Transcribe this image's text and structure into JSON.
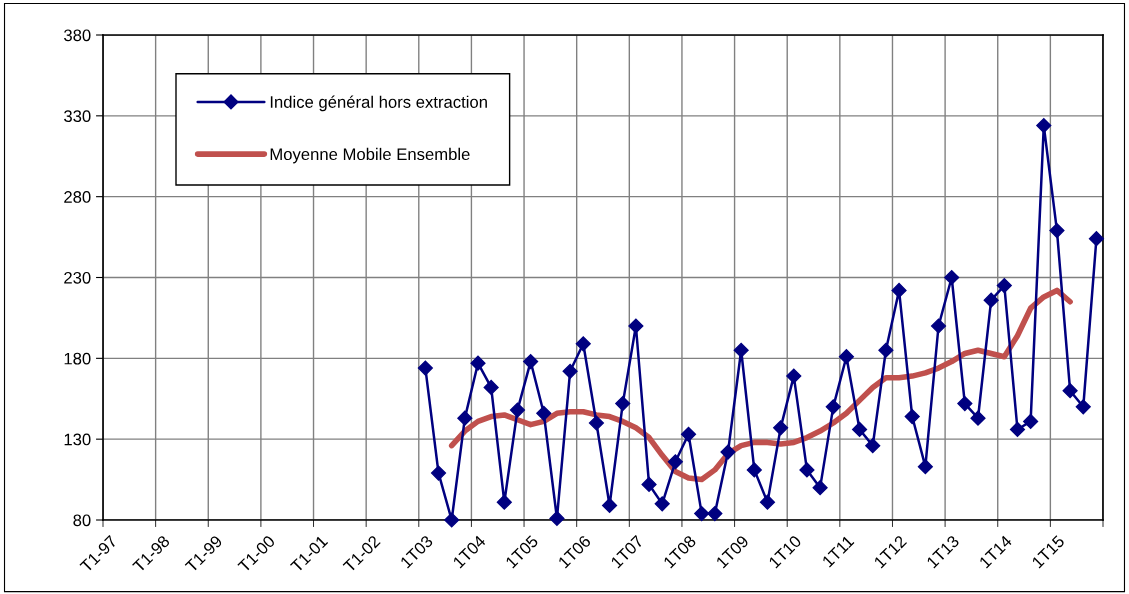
{
  "chart_data": {
    "type": "line",
    "categories": [
      "T1-97",
      null,
      null,
      null,
      "T1-98",
      null,
      null,
      null,
      "T1-99",
      null,
      null,
      null,
      "T1-00",
      null,
      null,
      null,
      "T1-01",
      null,
      null,
      null,
      "T1-02",
      null,
      null,
      null,
      "1T03",
      null,
      null,
      null,
      "1T04",
      null,
      null,
      null,
      "1T05",
      null,
      null,
      null,
      "1T06",
      null,
      null,
      null,
      "1T07",
      null,
      null,
      null,
      "1T08",
      null,
      null,
      null,
      "1T09",
      null,
      null,
      null,
      "1T10",
      null,
      null,
      null,
      "1T11",
      null,
      null,
      null,
      "1T12",
      null,
      null,
      null,
      "1T13",
      null,
      null,
      null,
      "1T14",
      null,
      null,
      null,
      "1T15",
      null,
      null,
      null
    ],
    "series": [
      {
        "name": "Indice général hors extraction",
        "color": "#000080",
        "marker": "diamond",
        "values": [
          null,
          null,
          null,
          null,
          null,
          null,
          null,
          null,
          null,
          null,
          null,
          null,
          null,
          null,
          null,
          null,
          null,
          null,
          null,
          null,
          null,
          null,
          null,
          null,
          174,
          109,
          80,
          143,
          177,
          162,
          91,
          148,
          178,
          146,
          81,
          172,
          189,
          140,
          89,
          152,
          200,
          102,
          90,
          116,
          133,
          84,
          84,
          122,
          185,
          111,
          91,
          137,
          169,
          111,
          100,
          150,
          181,
          136,
          126,
          185,
          222,
          144,
          113,
          200,
          230,
          152,
          143,
          216,
          225,
          136,
          141,
          324,
          259,
          160,
          150,
          254
        ]
      },
      {
        "name": "Moyenne Mobile Ensemble",
        "color": "#c0504d",
        "marker": "none",
        "values": [
          null,
          null,
          null,
          null,
          null,
          null,
          null,
          null,
          null,
          null,
          null,
          null,
          null,
          null,
          null,
          null,
          null,
          null,
          null,
          null,
          null,
          null,
          null,
          null,
          null,
          null,
          126,
          135,
          141,
          144,
          145,
          142,
          139,
          141,
          146,
          147,
          147,
          145,
          144,
          141,
          137,
          131,
          120,
          110,
          106,
          105,
          111,
          121,
          126,
          128,
          128,
          127,
          128,
          131,
          135,
          140,
          146,
          154,
          162,
          168,
          168,
          169,
          171,
          174,
          178,
          183,
          185,
          183,
          181,
          194,
          211,
          218,
          222,
          215,
          null,
          null
        ]
      }
    ],
    "ylim": [
      80,
      380
    ],
    "yticks": [
      80,
      130,
      180,
      230,
      280,
      330,
      380
    ],
    "grid": true,
    "legend": "top left"
  }
}
